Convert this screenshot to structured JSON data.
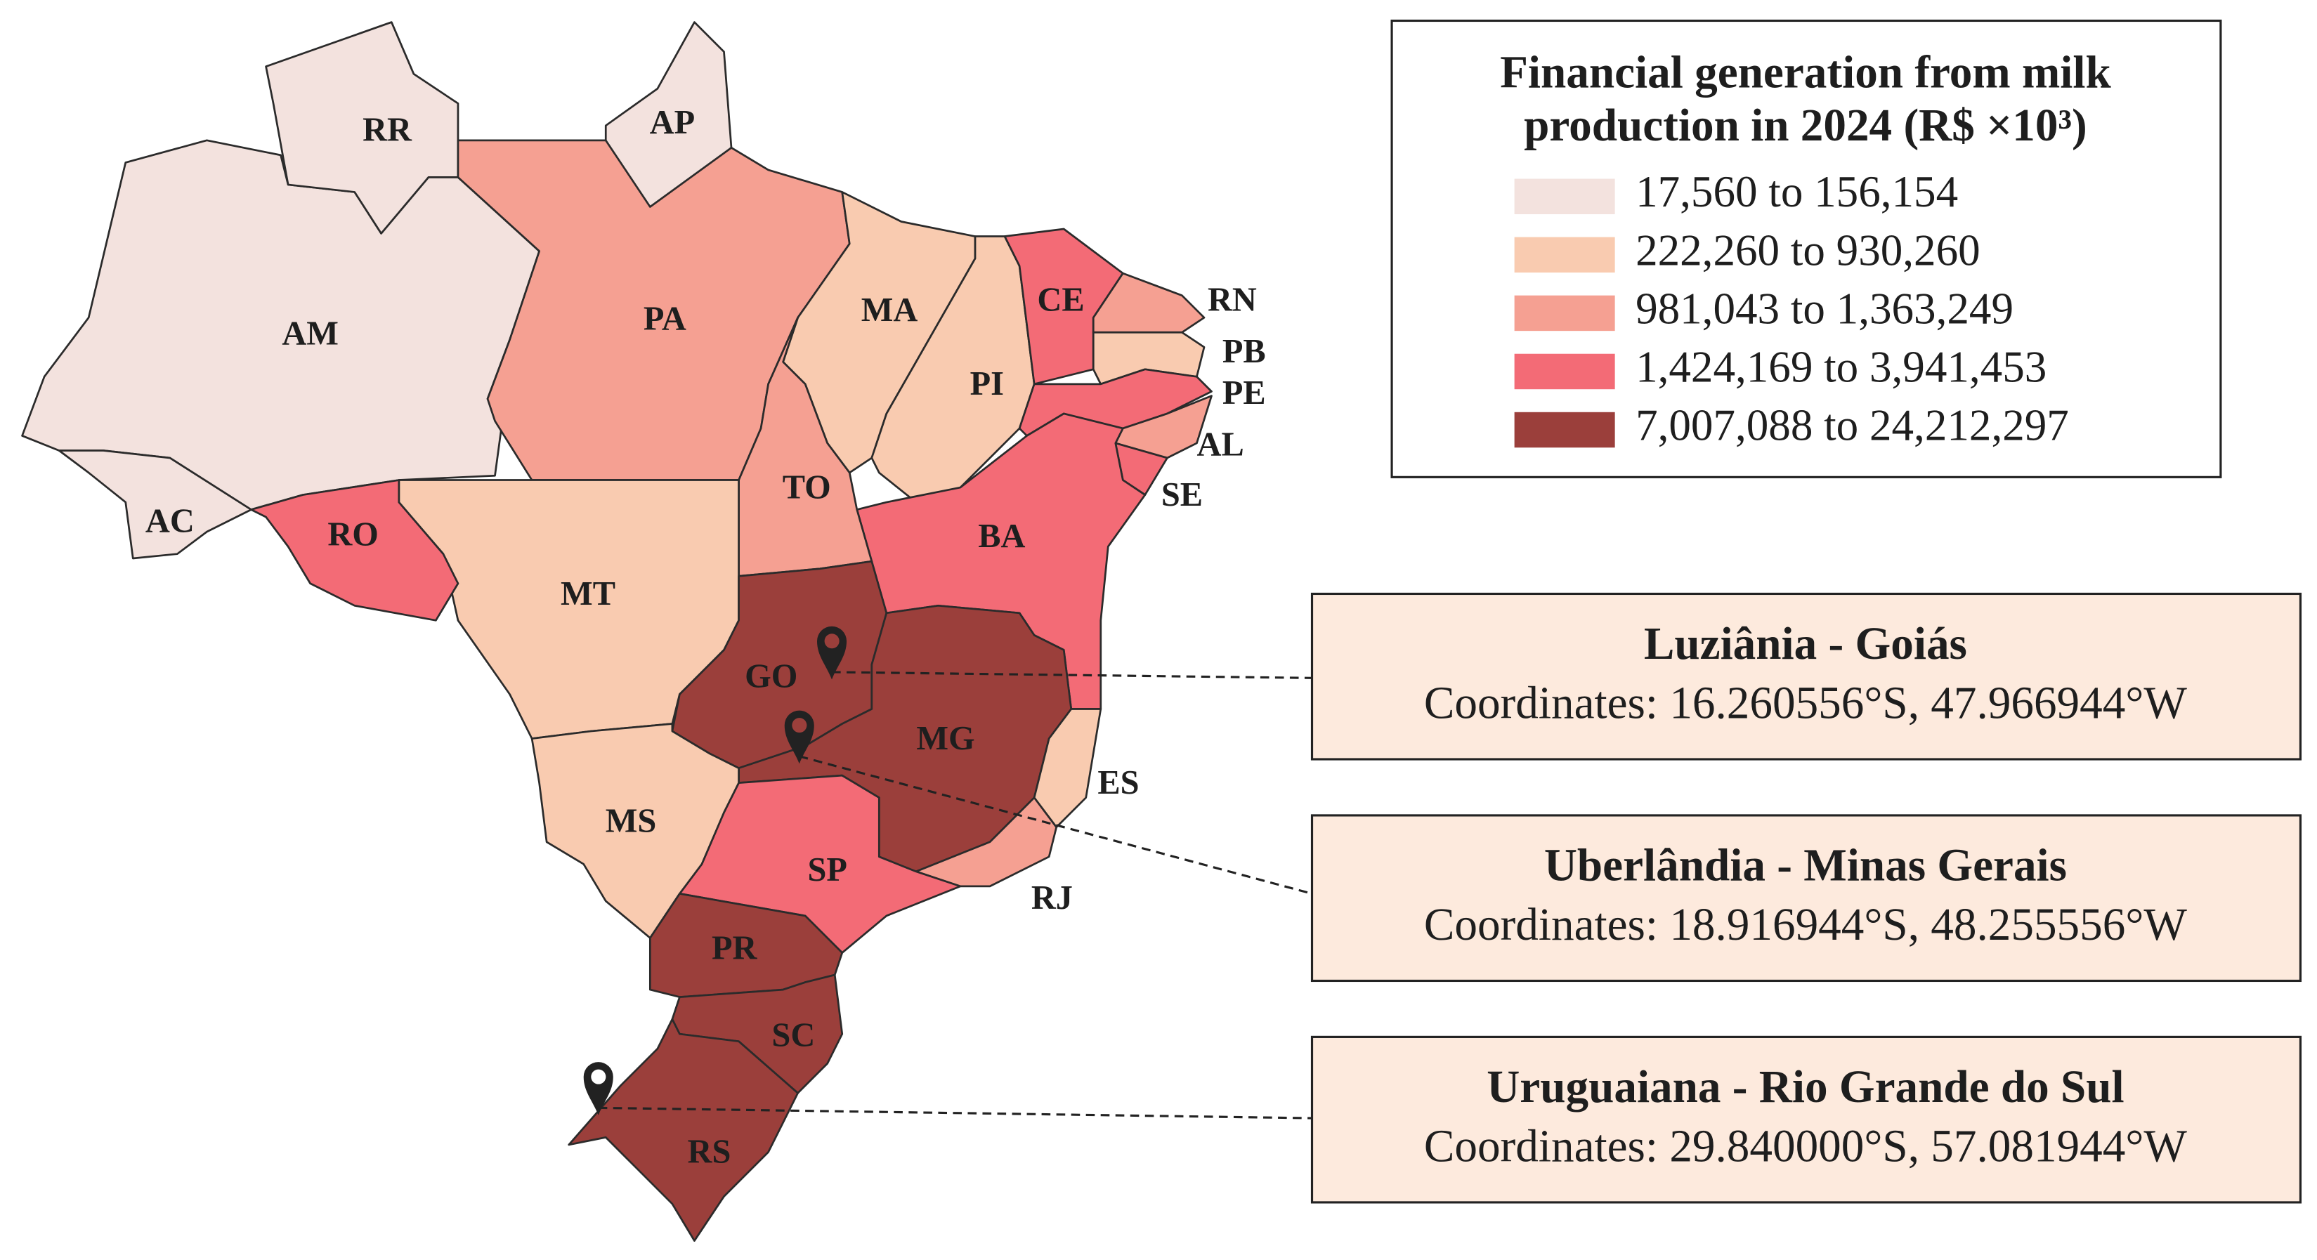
{
  "map": {
    "title": [
      "Financial generation from milk",
      "production in 2024 (R$ ×10³)"
    ],
    "legend": [
      {
        "label": "17,560 to 156,154",
        "color": "#f3e2de"
      },
      {
        "label": "222,260 to 930,260",
        "color": "#f9cbb0"
      },
      {
        "label": "981,043 to 1,363,249",
        "color": "#f5a092"
      },
      {
        "label": "1,424,169 to 3,941,453",
        "color": "#f36b76"
      },
      {
        "label": "7,007,088 to 24,212,297",
        "color": "#9b3f3b"
      }
    ],
    "states": [
      {
        "label": "AM",
        "color": "#f3e2de"
      },
      {
        "label": "AC",
        "color": "#f3e2de"
      },
      {
        "label": "RR",
        "color": "#f3e2de"
      },
      {
        "label": "AP",
        "color": "#f3e2de"
      },
      {
        "label": "PA",
        "color": "#f5a092"
      },
      {
        "label": "MA",
        "color": "#f9cbb0"
      },
      {
        "label": "PI",
        "color": "#f9cbb0"
      },
      {
        "label": "CE",
        "color": "#f36b76"
      },
      {
        "label": "RN",
        "color": "#f5a092"
      },
      {
        "label": "PB",
        "color": "#f9cbb0"
      },
      {
        "label": "PE",
        "color": "#f36b76"
      },
      {
        "label": "AL",
        "color": "#f5a092"
      },
      {
        "label": "SE",
        "color": "#f36b76"
      },
      {
        "label": "BA",
        "color": "#f36b76"
      },
      {
        "label": "TO",
        "color": "#f5a092"
      },
      {
        "label": "MT",
        "color": "#f9cbb0"
      },
      {
        "label": "RO",
        "color": "#f36b76"
      },
      {
        "label": "GO",
        "color": "#9b3f3b"
      },
      {
        "label": "MG",
        "color": "#9b3f3b"
      },
      {
        "label": "ES",
        "color": "#f9cbb0"
      },
      {
        "label": "RJ",
        "color": "#f5a092"
      },
      {
        "label": "SP",
        "color": "#f36b76"
      },
      {
        "label": "MS",
        "color": "#f9cbb0"
      },
      {
        "label": "PR",
        "color": "#9b3f3b"
      },
      {
        "label": "SC",
        "color": "#9b3f3b"
      },
      {
        "label": "RS",
        "color": "#9b3f3b"
      }
    ],
    "locations": [
      {
        "name": "Luziânia - Goiás",
        "coordinates": "Coordinates: 16.260556°S, 47.966944°W"
      },
      {
        "name": "Uberlândia - Minas Gerais",
        "coordinates": "Coordinates: 18.916944°S, 48.255556°W"
      },
      {
        "name": "Uruguaiana - Rio Grande do Sul",
        "coordinates": "Coordinates: 29.840000°S, 57.081944°W"
      }
    ]
  }
}
